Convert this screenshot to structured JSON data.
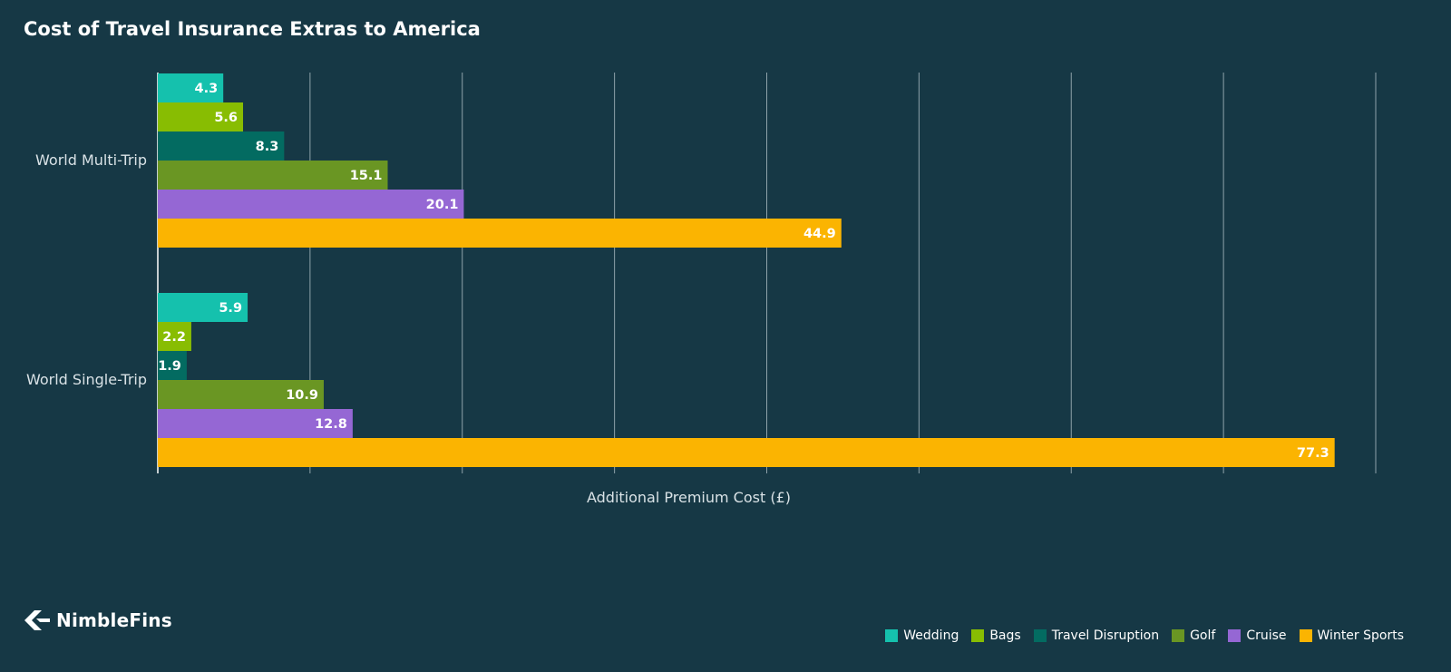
{
  "chart_data": {
    "type": "bar",
    "orientation": "horizontal",
    "title": "Cost of Travel Insurance Extras to America",
    "xlabel": "Additional Premium Cost (£)",
    "ylabel": "",
    "categories": [
      "World Multi-Trip",
      "World Single-Trip"
    ],
    "xlim": [
      0,
      80
    ],
    "grid": true,
    "legend": "bottom-right",
    "series": [
      {
        "name": "Wedding",
        "color": "#15c1ad",
        "values": [
          4.3,
          5.9
        ]
      },
      {
        "name": "Bags",
        "color": "#88bd02",
        "values": [
          5.6,
          2.2
        ]
      },
      {
        "name": "Travel Disruption",
        "color": "#036b61",
        "values": [
          8.3,
          1.9
        ]
      },
      {
        "name": "Golf",
        "color": "#6a9623",
        "values": [
          15.1,
          10.9
        ]
      },
      {
        "name": "Cruise",
        "color": "#9567d4",
        "values": [
          20.1,
          12.8
        ]
      },
      {
        "name": "Winter Sports",
        "color": "#fbb401",
        "values": [
          44.9,
          77.3
        ]
      }
    ]
  },
  "brand": {
    "name": "NimbleFins",
    "icon": "nimblefins-arrow-icon"
  }
}
